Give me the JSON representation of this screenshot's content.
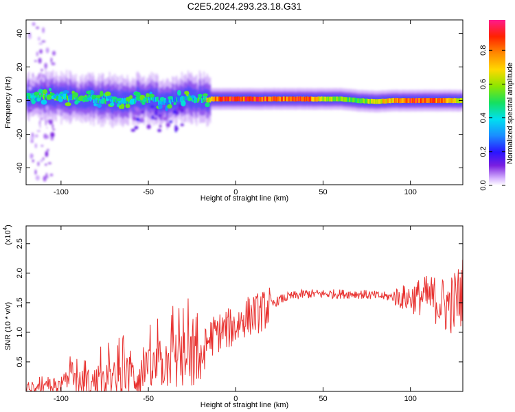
{
  "title": "C2E5.2024.293.23.18.G31",
  "chart_data": [
    {
      "type": "heatmap",
      "xlabel": "Height of straight line (km)",
      "ylabel": "Frequency (Hz)",
      "xlim": [
        -120,
        130
      ],
      "ylim": [
        -50,
        48
      ],
      "xticks": [
        -100,
        -50,
        0,
        50,
        100
      ],
      "yticks": [
        -40,
        -20,
        0,
        20,
        40
      ],
      "colorbar": {
        "label": "Normalized spectral amplitude",
        "range": [
          0,
          0.98
        ],
        "ticks": [
          0.0,
          0.2,
          0.4,
          0.6,
          0.8
        ]
      },
      "ridge": [
        {
          "x": -118,
          "freq": 2,
          "amp": 0.45
        },
        {
          "x": -110,
          "freq": 3,
          "amp": 0.5
        },
        {
          "x": -100,
          "freq": 2,
          "amp": 0.5
        },
        {
          "x": -90,
          "freq": 1,
          "amp": 0.45
        },
        {
          "x": -80,
          "freq": 1,
          "amp": 0.45
        },
        {
          "x": -70,
          "freq": 0,
          "amp": 0.45
        },
        {
          "x": -60,
          "freq": 0,
          "amp": 0.4
        },
        {
          "x": -50,
          "freq": 1,
          "amp": 0.45
        },
        {
          "x": -40,
          "freq": -1,
          "amp": 0.4
        },
        {
          "x": -30,
          "freq": 2,
          "amp": 0.4
        },
        {
          "x": -20,
          "freq": 1,
          "amp": 0.45
        },
        {
          "x": -10,
          "freq": 1,
          "amp": 0.9
        },
        {
          "x": 0,
          "freq": 1,
          "amp": 0.9
        },
        {
          "x": 10,
          "freq": 1,
          "amp": 0.9
        },
        {
          "x": 20,
          "freq": 1,
          "amp": 0.85
        },
        {
          "x": 30,
          "freq": 1,
          "amp": 0.85
        },
        {
          "x": 40,
          "freq": 1,
          "amp": 0.9
        },
        {
          "x": 50,
          "freq": 1,
          "amp": 0.65
        },
        {
          "x": 60,
          "freq": 1,
          "amp": 0.6
        },
        {
          "x": 70,
          "freq": 0,
          "amp": 0.55
        },
        {
          "x": 80,
          "freq": -0.5,
          "amp": 0.7
        },
        {
          "x": 90,
          "freq": 0,
          "amp": 0.75
        },
        {
          "x": 100,
          "freq": 0,
          "amp": 0.9
        },
        {
          "x": 110,
          "freq": 0,
          "amp": 0.9
        },
        {
          "x": 120,
          "freq": 0,
          "amp": 0.8
        },
        {
          "x": 130,
          "freq": 0,
          "amp": 0.6
        }
      ]
    },
    {
      "type": "line",
      "xlabel": "Height of straight line (km)",
      "ylabel": "SNR (10 * v/v)",
      "y_multiplier_label": "(x10",
      "y_multiplier_exp": "4",
      "y_multiplier_close": ")",
      "xlim": [
        -120,
        130
      ],
      "ylim": [
        0,
        2.8
      ],
      "xticks": [
        -100,
        -50,
        0,
        50,
        100
      ],
      "yticks": [
        0.5,
        1.0,
        1.5,
        2.0,
        2.5
      ],
      "color": "#e8312f",
      "series": [
        {
          "x": [
            -120,
            -110,
            -100,
            -95,
            -90,
            -80,
            -70,
            -60,
            -50,
            -45,
            -40,
            -35,
            -30,
            -25,
            -20,
            -18,
            -15,
            -10,
            -5,
            0,
            5,
            10,
            15,
            20,
            25,
            30,
            40,
            50,
            60,
            70,
            80,
            90,
            100,
            105,
            110,
            115,
            120,
            125,
            128,
            130
          ],
          "y": [
            0.08,
            0.05,
            0.1,
            0.2,
            0.15,
            0.15,
            0.2,
            0.25,
            0.3,
            0.4,
            0.5,
            0.55,
            0.5,
            0.55,
            0.45,
            0.7,
            0.9,
            1.0,
            1.05,
            1.1,
            1.25,
            1.3,
            1.35,
            1.45,
            1.55,
            1.6,
            1.65,
            1.65,
            1.65,
            1.65,
            1.62,
            1.6,
            1.58,
            1.6,
            1.6,
            1.55,
            1.45,
            1.5,
            1.6,
            1.7
          ]
        }
      ]
    }
  ]
}
